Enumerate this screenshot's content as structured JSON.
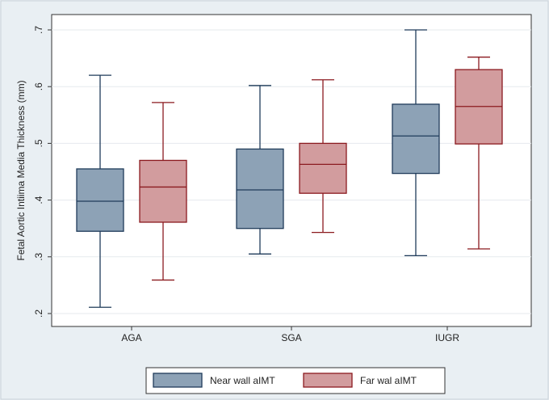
{
  "chart_data": {
    "type": "box",
    "categories": [
      "AGA",
      "SGA",
      "IUGR"
    ],
    "ylabel": "Fetal Aortic Intiima Media Thickness (mm)",
    "xlabel": "",
    "ylim": [
      0.2,
      0.7
    ],
    "yticks": [
      0.2,
      0.3,
      0.4,
      0.5,
      0.6,
      0.7
    ],
    "ytick_labels": [
      ".2",
      ".3",
      ".4",
      ".5",
      ".6",
      ".7"
    ],
    "grid": true,
    "legend_position": "bottom-center",
    "series": [
      {
        "name": "Near wall aIMT",
        "fill": "#8da2b6",
        "stroke": "#1f3b5a",
        "boxes": [
          {
            "min": 0.211,
            "q1": 0.345,
            "median": 0.398,
            "q3": 0.455,
            "max": 0.62
          },
          {
            "min": 0.305,
            "q1": 0.35,
            "median": 0.418,
            "q3": 0.49,
            "max": 0.602
          },
          {
            "min": 0.302,
            "q1": 0.447,
            "median": 0.513,
            "q3": 0.569,
            "max": 0.7
          }
        ]
      },
      {
        "name": "Far wal aIMT",
        "fill": "#d29c9e",
        "stroke": "#8b1a1f",
        "boxes": [
          {
            "min": 0.259,
            "q1": 0.361,
            "median": 0.423,
            "q3": 0.47,
            "max": 0.572
          },
          {
            "min": 0.343,
            "q1": 0.412,
            "median": 0.463,
            "q3": 0.5,
            "max": 0.612
          },
          {
            "min": 0.314,
            "q1": 0.499,
            "median": 0.565,
            "q3": 0.63,
            "max": 0.652
          }
        ]
      }
    ]
  }
}
